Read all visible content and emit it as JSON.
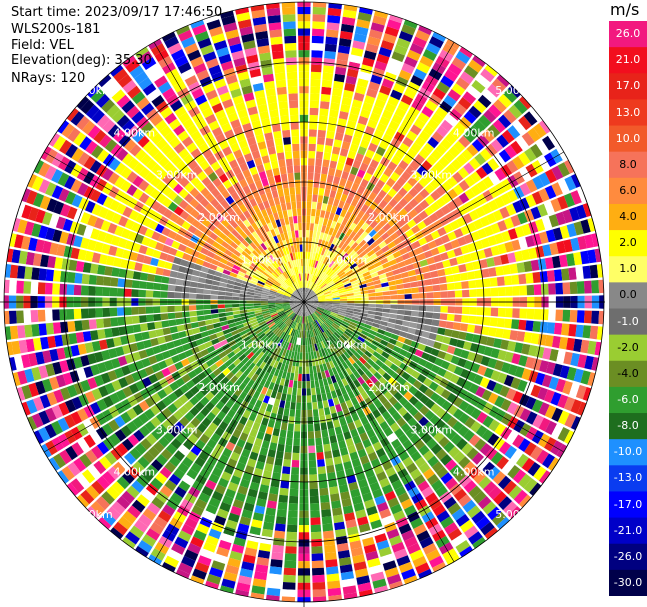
{
  "meta": {
    "start_time": "Start time: 2023/09/17 17:46:50",
    "instrument": "WLS200s-181",
    "field": "Field: VEL",
    "elevation": "Elevation(deg): 35.30",
    "nrays": "NRays: 120"
  },
  "colorbar": {
    "unit": "m/s",
    "labels": [
      "26.0",
      "21.0",
      "17.0",
      "13.0",
      "10.0",
      "8.0",
      "6.0",
      "4.0",
      "2.0",
      "1.0",
      "0.0",
      "-1.0",
      "-2.0",
      "-4.0",
      "-6.0",
      "-8.0",
      "-10.0",
      "-13.0",
      "-17.0",
      "-21.0",
      "-26.0",
      "-30.0"
    ],
    "colors": [
      "#f2197f",
      "#f20e1e",
      "#e8231a",
      "#ee3a1e",
      "#f25a2a",
      "#f6735a",
      "#ff8b3e",
      "#ffae12",
      "#ffff00",
      "#ffff66",
      "#888888",
      "#6e6e6e",
      "#9acd32",
      "#6b8e23",
      "#2f9e2f",
      "#1e6e1e",
      "#1e90ff",
      "#0a3cf0",
      "#0000ff",
      "#0000c8",
      "#000080",
      "#00004a"
    ]
  },
  "chart_data": {
    "type": "heatmap",
    "projection": "polar PPI",
    "field": "VEL",
    "units": "m/s",
    "n_rays": 120,
    "elevation_deg": 35.3,
    "range_rings_km": [
      1.0,
      2.0,
      3.0,
      4.0,
      5.0
    ],
    "ring_labels": [
      "1.00km",
      "2.00km",
      "3.00km",
      "4.00km",
      "5.00km"
    ],
    "color_scale_min": -30.0,
    "color_scale_max": 26.0,
    "pattern": {
      "inner_warm_half": "north sector (yellow/orange, 2 to 10 m/s)",
      "inner_cool_half": "south sector (green, -2 to -8 m/s)",
      "near_zero_band": "east and west (grey, about 0 m/s)",
      "outer_noise_km": 3.5
    }
  }
}
